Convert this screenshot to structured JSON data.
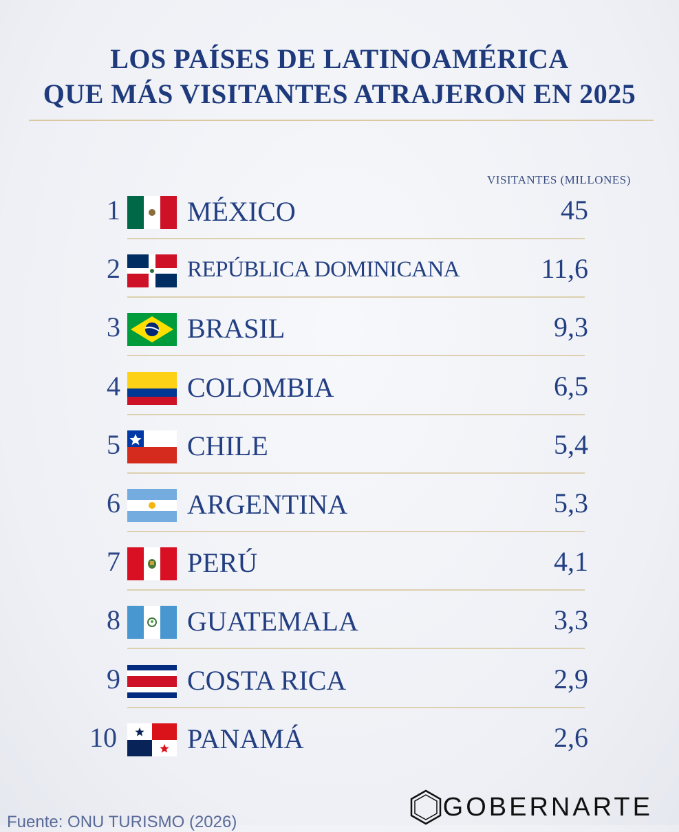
{
  "title": {
    "line1": "LOS PAÍSES DE LATINOAMÉRICA",
    "line2": "QUE MÁS VISITANTES ATRAJERON EN 2025"
  },
  "column_header": "VISITANTES (MILLONES)",
  "chart_data": {
    "type": "table",
    "title": "LOS PAÍSES DE LATINOAMÉRICA QUE MÁS VISITANTES ATRAJERON EN 2025",
    "columns": [
      "rank",
      "country",
      "VISITANTES (MILLONES)"
    ],
    "rows": [
      {
        "rank": "1",
        "country": "MÉXICO",
        "value": "45",
        "flag": "mexico"
      },
      {
        "rank": "2",
        "country": "REPÚBLICA DOMINICANA",
        "value": "11,6",
        "flag": "dominican-republic"
      },
      {
        "rank": "3",
        "country": "BRASIL",
        "value": "9,3",
        "flag": "brazil"
      },
      {
        "rank": "4",
        "country": "COLOMBIA",
        "value": "6,5",
        "flag": "colombia"
      },
      {
        "rank": "5",
        "country": "CHILE",
        "value": "5,4",
        "flag": "chile"
      },
      {
        "rank": "6",
        "country": "ARGENTINA",
        "value": "5,3",
        "flag": "argentina"
      },
      {
        "rank": "7",
        "country": "PERÚ",
        "value": "4,1",
        "flag": "peru"
      },
      {
        "rank": "8",
        "country": "GUATEMALA",
        "value": "3,3",
        "flag": "guatemala"
      },
      {
        "rank": "9",
        "country": "COSTA RICA",
        "value": "2,9",
        "flag": "costa-rica"
      },
      {
        "rank": "10",
        "country": "PANAMÁ",
        "value": "2,6",
        "flag": "panama"
      }
    ]
  },
  "logo": {
    "text": "GOBERNARTE"
  },
  "footnote": "Fuente: ONU TURISMO (2026)",
  "colors": {
    "title": "#1e3a7c",
    "rule": "#d9c9a3",
    "background": "#f2f3f7"
  }
}
